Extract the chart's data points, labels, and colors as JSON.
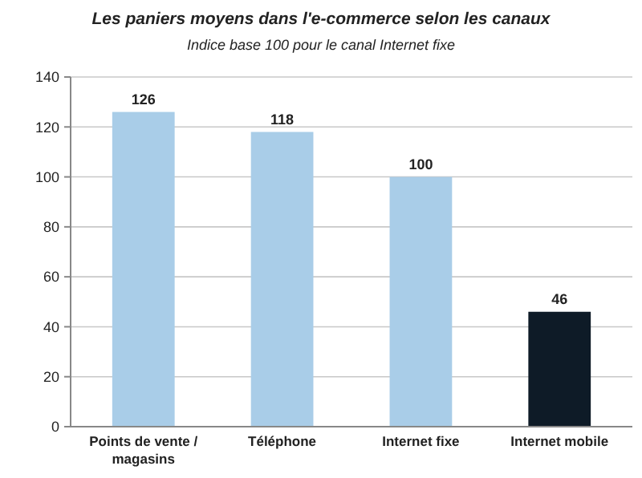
{
  "chart_data": {
    "type": "bar",
    "title": "Les paniers moyens dans l'e-commerce selon les canaux",
    "subtitle": "Indice base 100 pour le canal Internet fixe",
    "categories": [
      "Points de vente / magasins",
      "Téléphone",
      "Internet fixe",
      "Internet mobile"
    ],
    "values": [
      126,
      118,
      100,
      46
    ],
    "colors": [
      "#a9cde8",
      "#a9cde8",
      "#a9cde8",
      "#0e1b27"
    ],
    "ylim": [
      0,
      140
    ],
    "yticks": [
      0,
      20,
      40,
      60,
      80,
      100,
      120,
      140
    ],
    "grid": "y",
    "data_labels": true
  }
}
